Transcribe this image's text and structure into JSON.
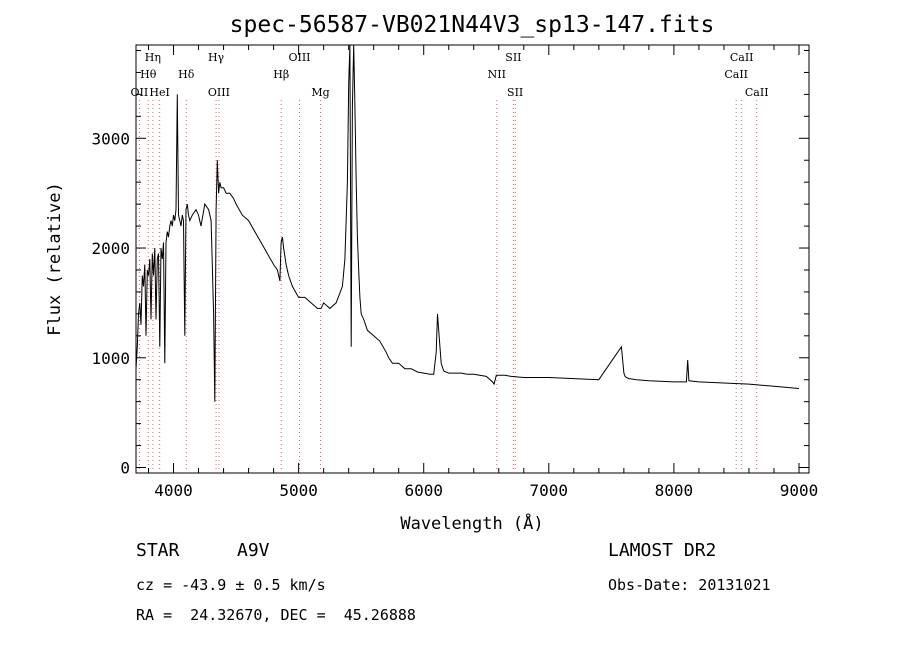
{
  "chart_data": {
    "type": "line",
    "title": "spec-56587-VB021N44V3_sp13-147.fits",
    "xlabel": "Wavelength (Å)",
    "ylabel": "Flux (relative)",
    "xlim": [
      3700,
      9080
    ],
    "ylim": [
      -50,
      3850
    ],
    "xticks": [
      4000,
      5000,
      6000,
      7000,
      8000,
      9000
    ],
    "yticks": [
      0,
      1000,
      2000,
      3000
    ],
    "grid": false,
    "series": [
      {
        "color": "#000000",
        "x": [
          3700,
          3710,
          3720,
          3730,
          3740,
          3750,
          3760,
          3770,
          3780,
          3790,
          3800,
          3810,
          3820,
          3830,
          3840,
          3850,
          3860,
          3870,
          3880,
          3890,
          3900,
          3910,
          3920,
          3930,
          3940,
          3950,
          3960,
          3970,
          3980,
          3990,
          4000,
          4010,
          4020,
          4030,
          4040,
          4050,
          4060,
          4070,
          4080,
          4090,
          4100,
          4110,
          4120,
          4130,
          4150,
          4180,
          4200,
          4220,
          4250,
          4280,
          4300,
          4320,
          4330,
          4340,
          4350,
          4360,
          4370,
          4380,
          4400,
          4420,
          4450,
          4480,
          4500,
          4550,
          4600,
          4650,
          4700,
          4750,
          4800,
          4830,
          4850,
          4860,
          4870,
          4880,
          4900,
          4920,
          4950,
          5000,
          5050,
          5100,
          5150,
          5180,
          5200,
          5250,
          5300,
          5350,
          5370,
          5390,
          5400,
          5410,
          5420,
          5430,
          5440,
          5450,
          5460,
          5470,
          5480,
          5490,
          5500,
          5520,
          5550,
          5600,
          5650,
          5700,
          5720,
          5750,
          5800,
          5850,
          5900,
          5950,
          6000,
          6050,
          6080,
          6100,
          6110,
          6120,
          6140,
          6160,
          6200,
          6250,
          6300,
          6350,
          6400,
          6500,
          6550,
          6563,
          6580,
          6600,
          6650,
          6700,
          6800,
          7000,
          7200,
          7400,
          7580,
          7600,
          7610,
          7620,
          7640,
          7700,
          7800,
          8000,
          8100,
          8110,
          8120,
          8200,
          8400,
          8600,
          8800,
          9000
        ],
        "y": [
          900,
          1100,
          1400,
          1500,
          1300,
          1750,
          1650,
          1850,
          1200,
          1800,
          1750,
          1900,
          1350,
          1950,
          1750,
          2000,
          1350,
          1900,
          1950,
          1100,
          2000,
          1900,
          2050,
          950,
          2050,
          2150,
          2100,
          2200,
          2250,
          2200,
          2300,
          2250,
          2350,
          3400,
          2300,
          2250,
          2200,
          2300,
          2250,
          1200,
          2350,
          2400,
          2300,
          2250,
          2300,
          2350,
          2300,
          2200,
          2400,
          2350,
          2250,
          1400,
          600,
          2350,
          2800,
          2500,
          2600,
          2550,
          2550,
          2500,
          2500,
          2450,
          2400,
          2300,
          2250,
          2150,
          2050,
          1950,
          1850,
          1800,
          1700,
          2050,
          2100,
          2000,
          1850,
          1750,
          1650,
          1550,
          1550,
          1500,
          1450,
          1450,
          1500,
          1450,
          1500,
          1650,
          1900,
          2600,
          3500,
          3850,
          1100,
          3300,
          4000,
          3300,
          2600,
          2100,
          1800,
          1550,
          1400,
          1350,
          1250,
          1200,
          1150,
          1050,
          1000,
          950,
          950,
          900,
          900,
          870,
          860,
          850,
          850,
          1050,
          1400,
          1250,
          950,
          880,
          860,
          860,
          860,
          850,
          850,
          830,
          780,
          760,
          840,
          840,
          840,
          830,
          820,
          820,
          810,
          800,
          1100,
          860,
          830,
          820,
          810,
          800,
          790,
          780,
          780,
          980,
          790,
          780,
          770,
          760,
          740,
          720
        ]
      }
    ],
    "markers": [
      {
        "label": "Hη",
        "x": 3835,
        "row": 1
      },
      {
        "label": "Hθ",
        "x": 3798,
        "row": 2
      },
      {
        "label": "OII",
        "x": 3727,
        "row": 3
      },
      {
        "label": "HeI",
        "x": 3889,
        "row": 3
      },
      {
        "label": "Hδ",
        "x": 4102,
        "row": 2
      },
      {
        "label": "Hγ",
        "x": 4340,
        "row": 1
      },
      {
        "label": "OIII",
        "x": 4363,
        "row": 3
      },
      {
        "label": "OIII",
        "x": 5007,
        "row": 1
      },
      {
        "label": "Hβ",
        "x": 4861,
        "row": 2
      },
      {
        "label": "Mg",
        "x": 5175,
        "row": 3
      },
      {
        "label": "SII",
        "x": 6717,
        "row": 1
      },
      {
        "label": "NII",
        "x": 6584,
        "row": 2
      },
      {
        "label": "SII",
        "x": 6731,
        "row": 3
      },
      {
        "label": "CaII",
        "x": 8542,
        "row": 1
      },
      {
        "label": "CaII",
        "x": 8498,
        "row": 2
      },
      {
        "label": "CaII",
        "x": 8662,
        "row": 3
      }
    ],
    "marker_color": "#e06060"
  },
  "info": {
    "class": "STAR",
    "subclass": "A9V",
    "survey": "LAMOST DR2",
    "cz": "cz = -43.9 ± 0.5 km/s",
    "obsdate": "Obs-Date: 20131021",
    "coords": "RA =  24.32670, DEC =  45.26888"
  }
}
